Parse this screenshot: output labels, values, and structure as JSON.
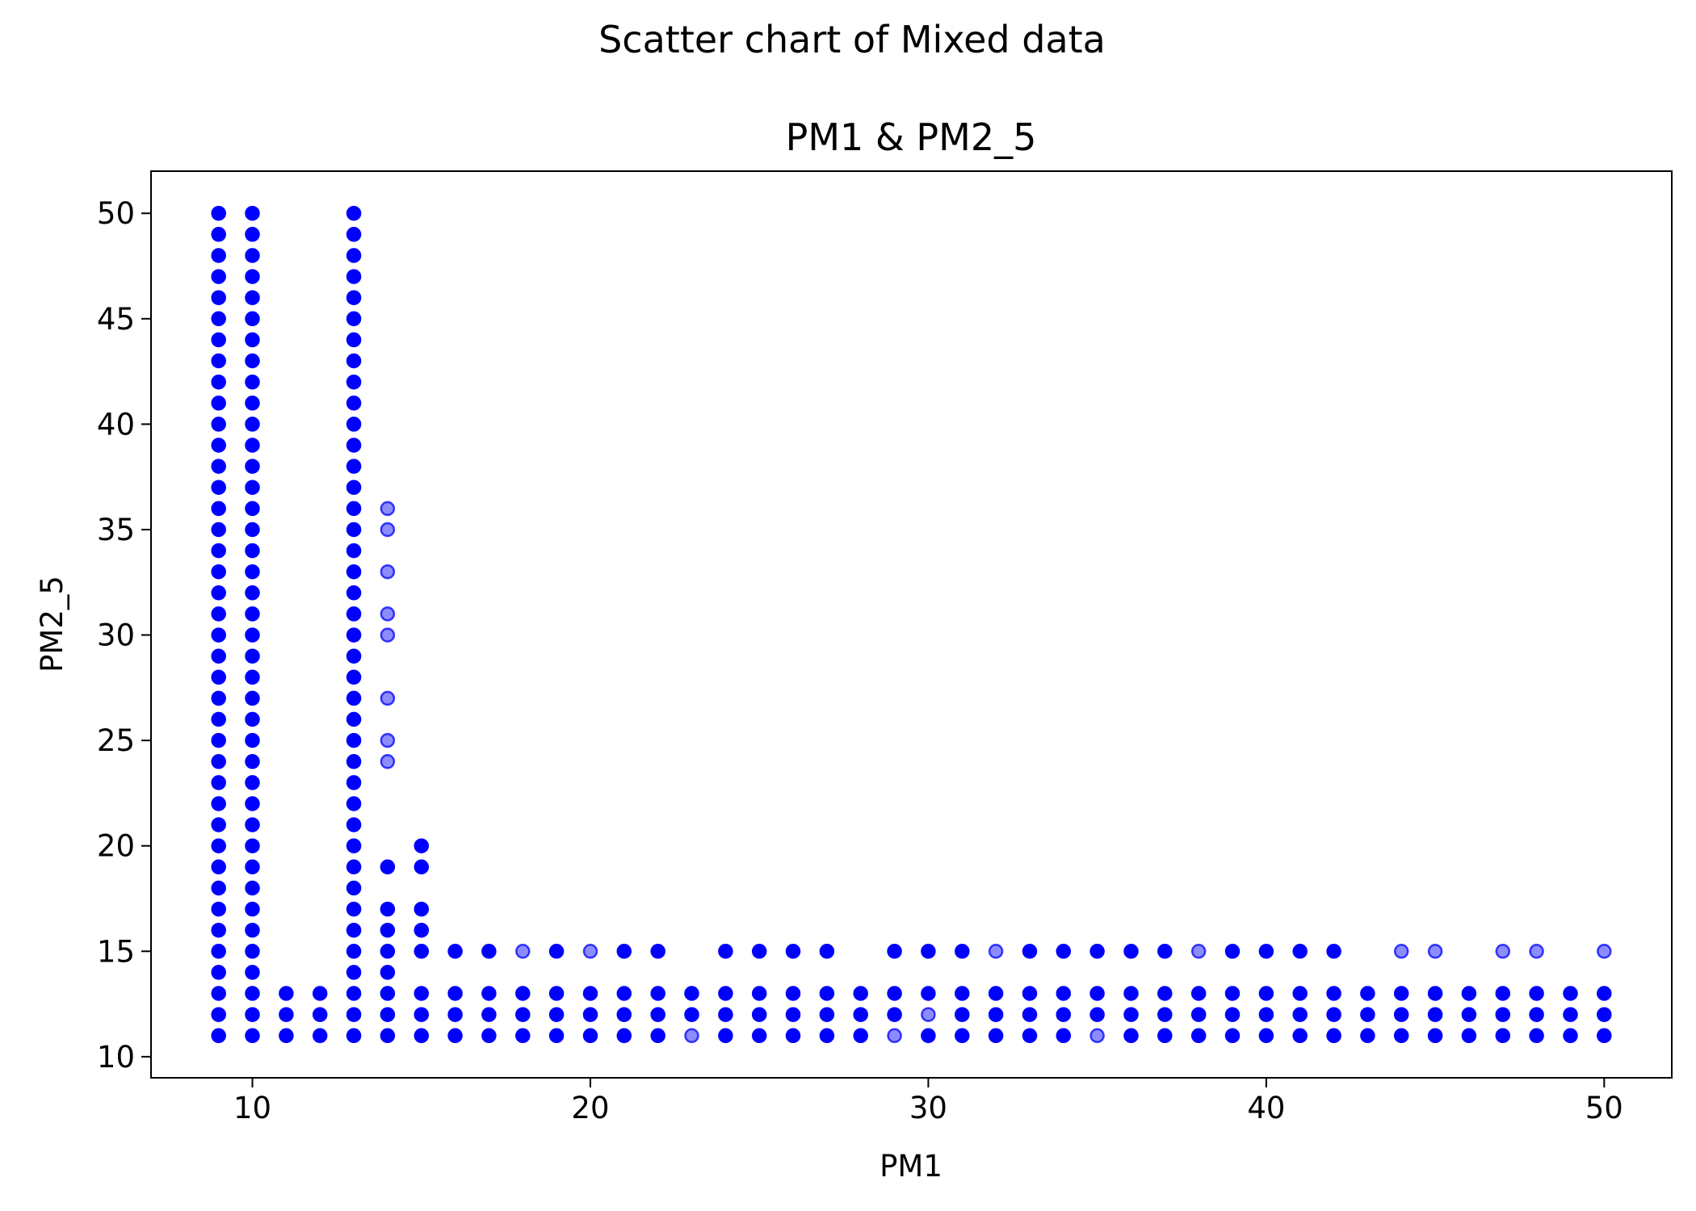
{
  "figure": {
    "suptitle": "Scatter chart of Mixed data"
  },
  "chart_data": {
    "type": "scatter",
    "title": "PM1 & PM2_5",
    "xlabel": "PM1",
    "ylabel": "PM2_5",
    "xlim": [
      7,
      52
    ],
    "ylim": [
      9,
      52
    ],
    "xticks": [
      10,
      20,
      30,
      40,
      50
    ],
    "yticks": [
      10,
      15,
      20,
      25,
      30,
      35,
      40,
      45,
      50
    ],
    "grid": false,
    "legend": false,
    "marker_color": "#0000ff",
    "background_color": "#ffffff",
    "series": [
      {
        "x": [
          9,
          9,
          9,
          9,
          9,
          9,
          9,
          9,
          9,
          9,
          9,
          9,
          9,
          9,
          9,
          9,
          9,
          9,
          9,
          9,
          9,
          9,
          9,
          9,
          9,
          9,
          9,
          9,
          9,
          9,
          9,
          9,
          9,
          9,
          9,
          9,
          9,
          9,
          9,
          9,
          10,
          10,
          10,
          10,
          10,
          10,
          10,
          10,
          10,
          10,
          10,
          10,
          10,
          10,
          10,
          10,
          10,
          10,
          10,
          10,
          10,
          10,
          10,
          10,
          10,
          10,
          10,
          10,
          10,
          10,
          10,
          10,
          10,
          10,
          10,
          10,
          10,
          10,
          10,
          10,
          11,
          11,
          11,
          12,
          12,
          12,
          13,
          13,
          13,
          13,
          13,
          13,
          13,
          13,
          13,
          13,
          13,
          13,
          13,
          13,
          13,
          13,
          13,
          13,
          13,
          13,
          13,
          13,
          13,
          13,
          13,
          13,
          13,
          13,
          13,
          13,
          13,
          13,
          13,
          13,
          13,
          13,
          13,
          13,
          13,
          13,
          14,
          14,
          14,
          14,
          14,
          14,
          14,
          14,
          15,
          15,
          15,
          15,
          15,
          15,
          15,
          15,
          16,
          16,
          16,
          16,
          17,
          17,
          17,
          17,
          18,
          18,
          18,
          19,
          19,
          19,
          19,
          20,
          20,
          20,
          21,
          21,
          21,
          21,
          22,
          22,
          22,
          22,
          23,
          23,
          24,
          24,
          24,
          24,
          25,
          25,
          25,
          25,
          26,
          26,
          26,
          26,
          27,
          27,
          27,
          27,
          28,
          28,
          28,
          29,
          29,
          29,
          30,
          30,
          30,
          31,
          31,
          31,
          31,
          32,
          32,
          32,
          33,
          33,
          33,
          33,
          34,
          34,
          34,
          34,
          35,
          35,
          35,
          36,
          36,
          36,
          36,
          37,
          37,
          37,
          37,
          38,
          38,
          38,
          39,
          39,
          39,
          39,
          40,
          40,
          40,
          40,
          41,
          41,
          41,
          41,
          42,
          42,
          42,
          42,
          43,
          43,
          43,
          44,
          44,
          44,
          45,
          45,
          45,
          46,
          46,
          46,
          47,
          47,
          47,
          48,
          48,
          48,
          49,
          49,
          49,
          50,
          50,
          50
        ],
        "y": [
          11,
          12,
          13,
          14,
          15,
          16,
          17,
          18,
          19,
          20,
          21,
          22,
          23,
          24,
          25,
          26,
          27,
          28,
          29,
          30,
          31,
          32,
          33,
          34,
          35,
          36,
          37,
          38,
          39,
          40,
          41,
          42,
          43,
          44,
          45,
          46,
          47,
          48,
          49,
          50,
          11,
          12,
          13,
          14,
          15,
          16,
          17,
          18,
          19,
          20,
          21,
          22,
          23,
          24,
          25,
          26,
          27,
          28,
          29,
          30,
          31,
          32,
          33,
          34,
          35,
          36,
          37,
          38,
          39,
          40,
          41,
          42,
          43,
          44,
          45,
          46,
          47,
          48,
          49,
          50,
          11,
          12,
          13,
          11,
          12,
          13,
          11,
          12,
          13,
          14,
          15,
          16,
          17,
          18,
          19,
          20,
          21,
          22,
          23,
          24,
          25,
          26,
          27,
          28,
          29,
          30,
          31,
          32,
          33,
          34,
          35,
          36,
          37,
          38,
          39,
          40,
          41,
          42,
          43,
          44,
          45,
          46,
          47,
          48,
          49,
          50,
          11,
          12,
          13,
          14,
          15,
          16,
          17,
          19,
          11,
          12,
          13,
          15,
          16,
          17,
          19,
          20,
          11,
          12,
          13,
          15,
          11,
          12,
          13,
          15,
          11,
          12,
          13,
          11,
          12,
          13,
          15,
          11,
          12,
          13,
          11,
          12,
          13,
          15,
          11,
          12,
          13,
          15,
          12,
          13,
          11,
          12,
          13,
          15,
          11,
          12,
          13,
          15,
          11,
          12,
          13,
          15,
          11,
          12,
          13,
          15,
          11,
          12,
          13,
          12,
          13,
          15,
          11,
          13,
          15,
          11,
          12,
          13,
          15,
          11,
          12,
          13,
          11,
          12,
          13,
          15,
          11,
          12,
          13,
          15,
          12,
          13,
          15,
          11,
          12,
          13,
          15,
          11,
          12,
          13,
          15,
          11,
          12,
          13,
          11,
          12,
          13,
          15,
          11,
          12,
          13,
          15,
          11,
          12,
          13,
          15,
          11,
          12,
          13,
          15,
          11,
          12,
          13,
          11,
          12,
          13,
          11,
          12,
          13,
          11,
          12,
          13,
          11,
          12,
          13,
          11,
          12,
          13,
          11,
          12,
          13,
          11,
          12,
          13
        ]
      },
      {
        "x": [
          14,
          14,
          14,
          14,
          14,
          14,
          14,
          14,
          18,
          20,
          23,
          29,
          30,
          32,
          35,
          38,
          44,
          45,
          47,
          48,
          50
        ],
        "y": [
          24,
          25,
          27,
          30,
          31,
          33,
          35,
          36,
          15,
          15,
          11,
          11,
          12,
          15,
          11,
          15,
          15,
          15,
          15,
          15,
          15
        ]
      }
    ]
  }
}
